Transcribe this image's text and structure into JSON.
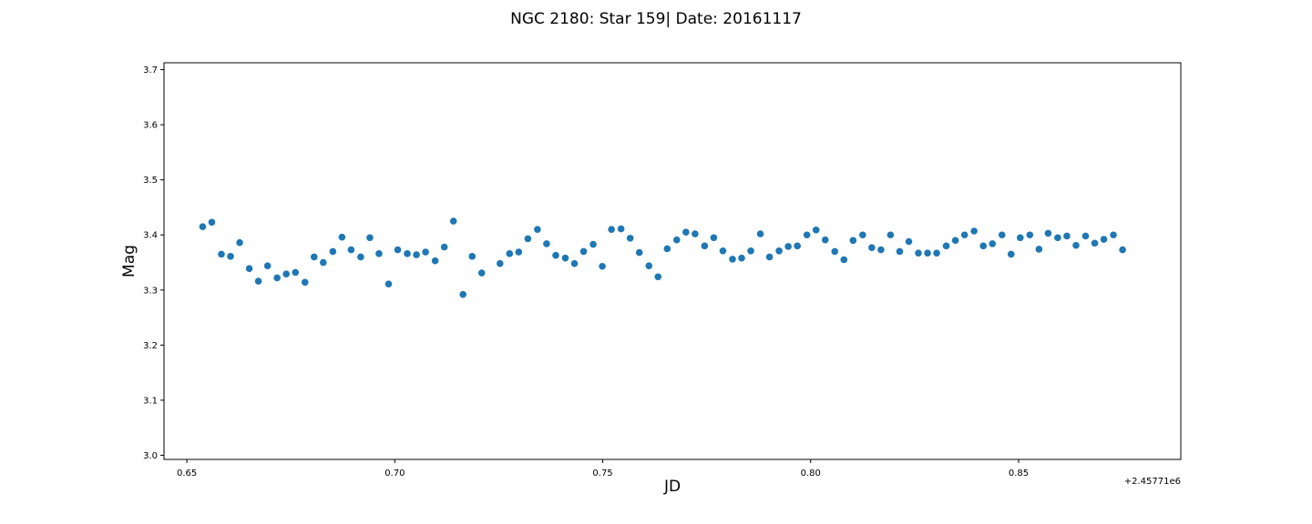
{
  "chart_data": {
    "type": "scatter",
    "title": "NGC 2180: Star 159| Date: 20161117",
    "xlabel": "JD",
    "ylabel": "Mag",
    "x_offset_label": "+2.45771e6",
    "xlim": [
      0.6445,
      0.889
    ],
    "ylim": [
      2.9925,
      3.7125
    ],
    "xticks": [
      0.65,
      0.7,
      0.75,
      0.8,
      0.85
    ],
    "xtick_labels": [
      "0.65",
      "0.70",
      "0.75",
      "0.80",
      "0.85"
    ],
    "yticks": [
      3.0,
      3.1,
      3.2,
      3.3,
      3.4,
      3.5,
      3.6,
      3.7
    ],
    "ytick_labels": [
      "3.0",
      "3.1",
      "3.2",
      "3.3",
      "3.4",
      "3.5",
      "3.6",
      "3.7"
    ],
    "grid": false,
    "marker_color": "#1f77b4",
    "series": [
      {
        "points": [
          [
            0.6538,
            3.415
          ],
          [
            0.656,
            3.423
          ],
          [
            0.6583,
            3.365
          ],
          [
            0.6605,
            3.361
          ],
          [
            0.6627,
            3.386
          ],
          [
            0.665,
            3.339
          ],
          [
            0.6672,
            3.316
          ],
          [
            0.6694,
            3.344
          ],
          [
            0.6717,
            3.322
          ],
          [
            0.6739,
            3.329
          ],
          [
            0.6761,
            3.332
          ],
          [
            0.6784,
            3.314
          ],
          [
            0.6806,
            3.36
          ],
          [
            0.6828,
            3.35
          ],
          [
            0.6851,
            3.37
          ],
          [
            0.6873,
            3.396
          ],
          [
            0.6895,
            3.373
          ],
          [
            0.6918,
            3.36
          ],
          [
            0.694,
            3.395
          ],
          [
            0.6962,
            3.366
          ],
          [
            0.6985,
            3.311
          ],
          [
            0.7007,
            3.373
          ],
          [
            0.703,
            3.366
          ],
          [
            0.7052,
            3.364
          ],
          [
            0.7074,
            3.369
          ],
          [
            0.7097,
            3.353
          ],
          [
            0.7119,
            3.378
          ],
          [
            0.7141,
            3.425
          ],
          [
            0.7164,
            3.292
          ],
          [
            0.7186,
            3.361
          ],
          [
            0.7209,
            3.331
          ],
          [
            0.7253,
            3.348
          ],
          [
            0.7276,
            3.366
          ],
          [
            0.7298,
            3.369
          ],
          [
            0.732,
            3.393
          ],
          [
            0.7343,
            3.41
          ],
          [
            0.7365,
            3.384
          ],
          [
            0.7387,
            3.363
          ],
          [
            0.741,
            3.358
          ],
          [
            0.7432,
            3.348
          ],
          [
            0.7454,
            3.37
          ],
          [
            0.7477,
            3.383
          ],
          [
            0.7499,
            3.343
          ],
          [
            0.7521,
            3.41
          ],
          [
            0.7544,
            3.411
          ],
          [
            0.7566,
            3.394
          ],
          [
            0.7588,
            3.368
          ],
          [
            0.7611,
            3.344
          ],
          [
            0.7633,
            3.324
          ],
          [
            0.7655,
            3.375
          ],
          [
            0.7678,
            3.391
          ],
          [
            0.77,
            3.405
          ],
          [
            0.7722,
            3.402
          ],
          [
            0.7745,
            3.38
          ],
          [
            0.7767,
            3.395
          ],
          [
            0.7789,
            3.371
          ],
          [
            0.7812,
            3.356
          ],
          [
            0.7834,
            3.358
          ],
          [
            0.7856,
            3.371
          ],
          [
            0.7879,
            3.402
          ],
          [
            0.7901,
            3.36
          ],
          [
            0.7924,
            3.371
          ],
          [
            0.7946,
            3.379
          ],
          [
            0.7968,
            3.38
          ],
          [
            0.7991,
            3.4
          ],
          [
            0.8013,
            3.409
          ],
          [
            0.8035,
            3.391
          ],
          [
            0.8058,
            3.37
          ],
          [
            0.808,
            3.355
          ],
          [
            0.8102,
            3.39
          ],
          [
            0.8125,
            3.4
          ],
          [
            0.8147,
            3.377
          ],
          [
            0.8169,
            3.373
          ],
          [
            0.8192,
            3.4
          ],
          [
            0.8214,
            3.37
          ],
          [
            0.8236,
            3.388
          ],
          [
            0.8259,
            3.367
          ],
          [
            0.8281,
            3.367
          ],
          [
            0.8303,
            3.367
          ],
          [
            0.8326,
            3.38
          ],
          [
            0.8348,
            3.39
          ],
          [
            0.837,
            3.4
          ],
          [
            0.8393,
            3.407
          ],
          [
            0.8415,
            3.38
          ],
          [
            0.8437,
            3.384
          ],
          [
            0.846,
            3.4
          ],
          [
            0.8482,
            3.365
          ],
          [
            0.8504,
            3.395
          ],
          [
            0.8527,
            3.4
          ],
          [
            0.8549,
            3.374
          ],
          [
            0.8571,
            3.403
          ],
          [
            0.8594,
            3.395
          ],
          [
            0.8616,
            3.398
          ],
          [
            0.8638,
            3.381
          ],
          [
            0.8661,
            3.398
          ],
          [
            0.8683,
            3.385
          ],
          [
            0.8705,
            3.392
          ],
          [
            0.8728,
            3.4
          ],
          [
            0.875,
            3.373
          ]
        ]
      }
    ]
  }
}
